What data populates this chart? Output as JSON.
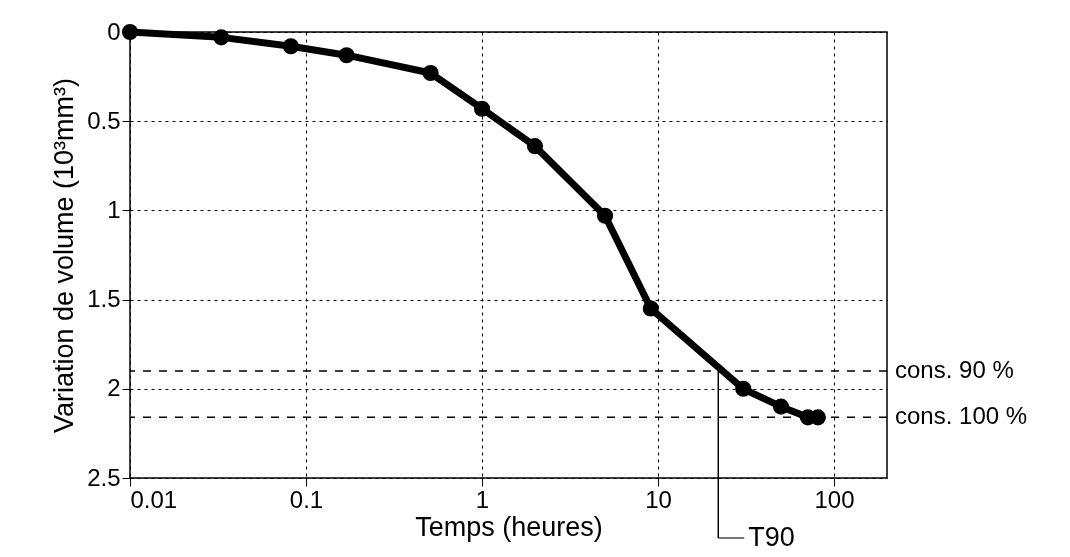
{
  "chart_data": {
    "type": "line",
    "xlabel": "Temps (heures)",
    "ylabel": "Variation de volume (10³mm³)",
    "x": [
      0.01,
      0.033,
      0.082,
      0.17,
      0.51,
      1.0,
      2.0,
      5.0,
      9.1,
      30.5,
      50,
      71,
      81
    ],
    "series": [
      {
        "color": "#000000",
        "values": [
          0,
          0.03,
          0.08,
          0.13,
          0.23,
          0.43,
          0.64,
          1.03,
          1.55,
          2.0,
          2.1,
          2.16,
          2.16
        ]
      }
    ],
    "log": "x",
    "xlim": [
      0.01,
      200
    ],
    "xticks": [
      0.01,
      0.1,
      1,
      10,
      100
    ],
    "ylim": [
      2.5,
      0
    ],
    "yticks": [
      0,
      0.5,
      1,
      1.5,
      2,
      2.5
    ],
    "grid": true,
    "marker": "circle",
    "line_style": "solid",
    "ref_lines": [
      {
        "axis": "y",
        "value": 1.9,
        "label": "cons. 90 %",
        "line_style": "dashed",
        "color": "#000000"
      },
      {
        "axis": "y",
        "value": 2.16,
        "label": "cons. 100 %",
        "line_style": "dashed",
        "color": "#000000"
      }
    ],
    "annotations": [
      {
        "text": "T90",
        "x": 22,
        "y": 1.9
      }
    ]
  }
}
